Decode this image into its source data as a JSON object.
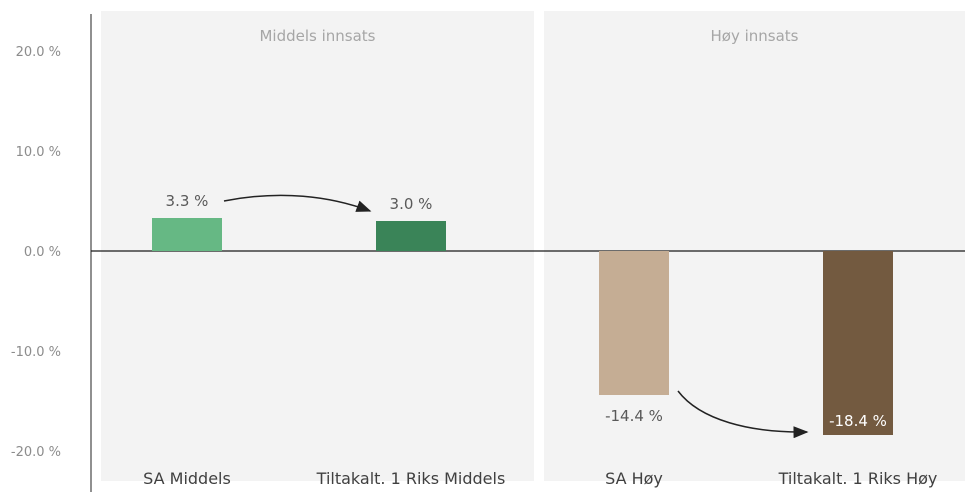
{
  "chart_data": {
    "type": "bar",
    "title": "",
    "xlabel": "",
    "ylabel": "",
    "ylim": [
      -23,
      24
    ],
    "yticks": [
      20,
      10,
      0,
      -10,
      -20
    ],
    "ytick_labels": [
      "20.0 %",
      "10.0 %",
      "0.0 %",
      "-10.0 %",
      "-20.0 %"
    ],
    "grid": false,
    "legend": "none",
    "panels": [
      {
        "label": "Middels innsats",
        "categories": [
          "SA Middels",
          "Tiltakalt. 1 Riks Middels"
        ]
      },
      {
        "label": "Høy innsats",
        "categories": [
          "SA Høy",
          "Tiltakalt. 1 Riks Høy"
        ]
      }
    ],
    "categories": [
      "SA Middels",
      "Tiltakalt. 1 Riks Middels",
      "SA Høy",
      "Tiltakalt. 1 Riks Høy"
    ],
    "values": [
      3.3,
      3.0,
      -14.4,
      -18.4
    ],
    "value_labels": [
      "3.3 %",
      "3.0 %",
      "-14.4 %",
      "-18.4 %"
    ],
    "colors": [
      "#66b884",
      "#3a8458",
      "#c5ad94",
      "#735a40"
    ],
    "panel_background": "#f3f3f3",
    "annotations": [
      "arrow from SA Middels to Tiltakalt. 1 Riks Middels",
      "arrow from SA Høy to Tiltakalt. 1 Riks Høy"
    ]
  }
}
